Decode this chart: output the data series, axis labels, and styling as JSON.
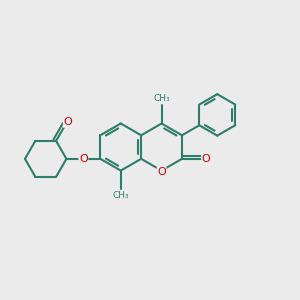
{
  "bg_color": "#EBEBEB",
  "bond_color": "#2E7D6B",
  "atom_color": "#CC0000",
  "bond_width": 1.5,
  "fig_size": [
    3.0,
    3.0
  ],
  "dpi": 100,
  "s": 0.4,
  "xlim": [
    -2.3,
    2.7
  ],
  "ylim": [
    -1.6,
    1.6
  ]
}
